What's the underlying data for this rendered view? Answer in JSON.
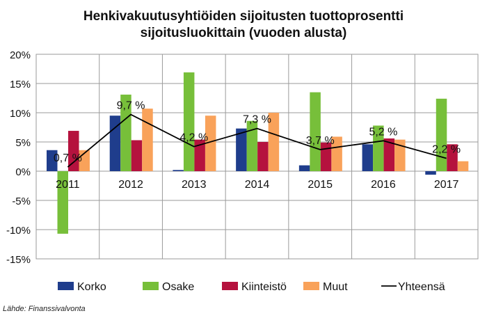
{
  "chart_data": {
    "type": "bar",
    "title_lines": [
      "Henkivakuutusyhtiöiden sijoitusten tuottoprosentti",
      "sijoitusluokittain (vuoden alusta)"
    ],
    "categories": [
      "2011",
      "2012",
      "2013",
      "2014",
      "2015",
      "2016",
      "2017"
    ],
    "series": [
      {
        "name": "Korko",
        "color": "#1F3D8C",
        "values": [
          3.6,
          9.5,
          0.2,
          7.3,
          1.0,
          4.6,
          -0.6
        ]
      },
      {
        "name": "Osake",
        "color": "#77BF3A",
        "values": [
          -10.7,
          13.1,
          16.9,
          8.6,
          13.5,
          7.8,
          12.4
        ]
      },
      {
        "name": "Kiinteistö",
        "color": "#B5123E",
        "values": [
          6.9,
          5.3,
          5.4,
          5.0,
          4.9,
          5.6,
          4.6
        ]
      },
      {
        "name": "Muut",
        "color": "#F9A25A",
        "values": [
          3.6,
          10.7,
          9.5,
          10.0,
          5.9,
          5.4,
          1.7
        ]
      }
    ],
    "line_series": {
      "name": "Yhteensä",
      "color": "#000000",
      "values": [
        0.7,
        9.7,
        4.2,
        7.3,
        3.7,
        5.2,
        2.2
      ],
      "labels": [
        "0,7 %",
        "9,7 %",
        "4,2 %",
        "7,3 %",
        "3,7 %",
        "5,2 %",
        "2,2 %"
      ]
    },
    "y_ticks": [
      20,
      15,
      10,
      5,
      0,
      -5,
      -10,
      -15
    ],
    "y_tick_labels": [
      "20%",
      "15%",
      "10%",
      "5%",
      "0%",
      "-5%",
      "-10%",
      "-15%"
    ],
    "ylim": [
      -15,
      20
    ],
    "grid": true,
    "legend_position": "bottom",
    "source": "Lähde: Finanssivalvonta"
  }
}
